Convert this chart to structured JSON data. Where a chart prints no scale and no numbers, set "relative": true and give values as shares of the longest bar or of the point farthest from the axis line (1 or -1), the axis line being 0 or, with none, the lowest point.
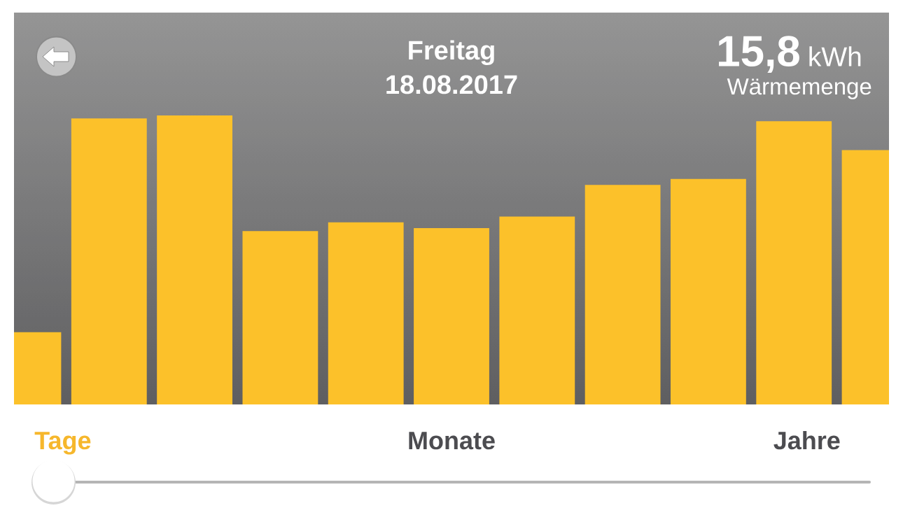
{
  "chart_data": {
    "type": "bar",
    "title": "Freitag",
    "subtitle": "18.08.2017",
    "categories": [
      null,
      null,
      null,
      null,
      null,
      null,
      null,
      null,
      null,
      null,
      null
    ],
    "values": [
      0.25,
      0.99,
      1.0,
      0.6,
      0.63,
      0.61,
      0.65,
      0.76,
      0.78,
      0.98,
      0.88
    ],
    "relative": true,
    "color": "#fcc12a",
    "annotations": [
      "15,8",
      "kWh",
      "Wärmemenge",
      "Tage",
      "Monate",
      "Jahre"
    ]
  }
}
